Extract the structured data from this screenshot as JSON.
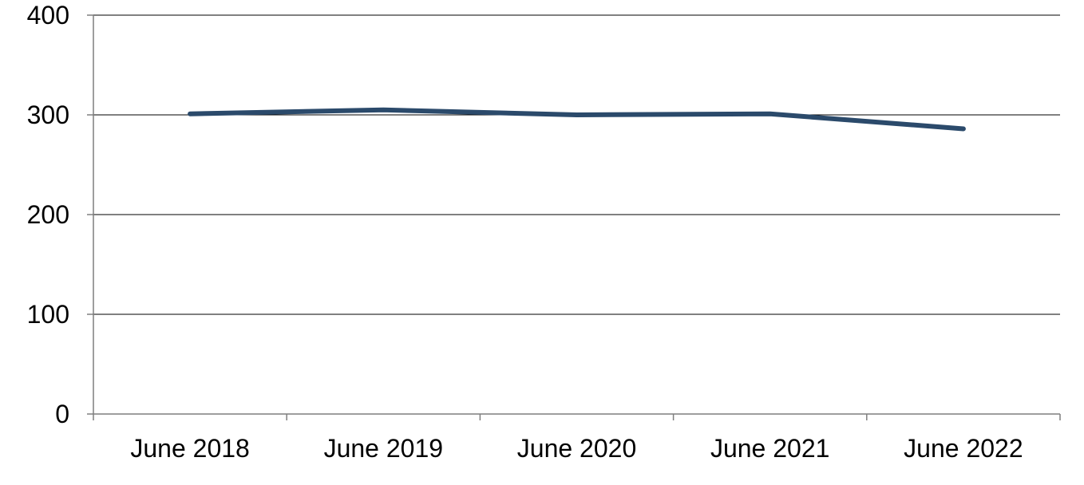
{
  "chart_data": {
    "type": "line",
    "title": "",
    "xlabel": "",
    "ylabel": "",
    "categories": [
      "June 2018",
      "June 2019",
      "June 2020",
      "June 2021",
      "June 2022"
    ],
    "series": [
      {
        "values": [
          301,
          305,
          300,
          301,
          286
        ],
        "color": "#2b4a6b"
      }
    ],
    "ylim": [
      0,
      400
    ],
    "yticks": [
      "0",
      "100",
      "200",
      "300",
      "400"
    ],
    "grid": true,
    "legend": "none"
  }
}
